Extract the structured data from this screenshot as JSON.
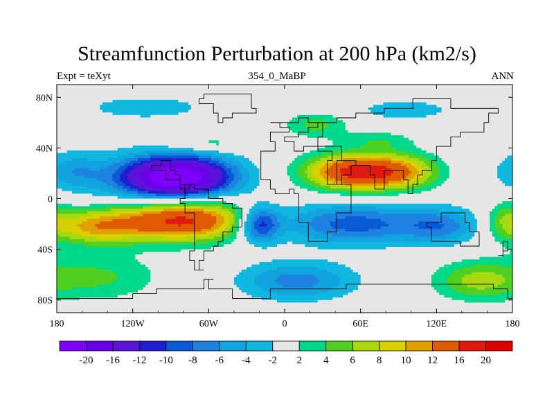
{
  "title": "Streamfunction Perturbation at 200 hPa (km2/s)",
  "subtitle_left": "Expt = teXyt",
  "subtitle_center": "354_0_MaBP",
  "subtitle_right": "ANN",
  "chart_data": {
    "type": "heatmap",
    "projection": "cylindrical-equidistant",
    "xlim": [
      -180,
      180
    ],
    "ylim": [
      -90,
      90
    ],
    "x_ticks": [
      {
        "value": -180,
        "label": "180"
      },
      {
        "value": -120,
        "label": "120W"
      },
      {
        "value": -60,
        "label": "60W"
      },
      {
        "value": 0,
        "label": "0"
      },
      {
        "value": 60,
        "label": "60E"
      },
      {
        "value": 120,
        "label": "120E"
      },
      {
        "value": 180,
        "label": "180"
      }
    ],
    "y_ticks": [
      {
        "value": 80,
        "label": "80N"
      },
      {
        "value": 40,
        "label": "40N"
      },
      {
        "value": 0,
        "label": "0"
      },
      {
        "value": -40,
        "label": "40S"
      },
      {
        "value": -80,
        "label": "80S"
      }
    ],
    "colorbar": {
      "levels": [
        "-20",
        "-16",
        "-12",
        "-10",
        "-8",
        "-6",
        "-4",
        "-2",
        "2",
        "4",
        "6",
        "8",
        "10",
        "12",
        "16",
        "20"
      ],
      "level_values": [
        -20,
        -16,
        -12,
        -10,
        -8,
        -6,
        -4,
        -2,
        2,
        4,
        6,
        8,
        10,
        12,
        16,
        20
      ],
      "colors": [
        "#7f00ff",
        "#6a00e6",
        "#5a14d8",
        "#1f1fd0",
        "#0a5ad6",
        "#1e82e0",
        "#11a4de",
        "#10b8e0",
        "#e6e6e6",
        "#00d88a",
        "#50d020",
        "#a8d810",
        "#d8d000",
        "#e0a000",
        "#e05a00",
        "#e01a10",
        "#e00000"
      ]
    },
    "field_features": [
      {
        "lon": -85,
        "lat": 17,
        "lon_radius": 42,
        "lat_radius": 16,
        "value": -23
      },
      {
        "lon": -167,
        "lat": 22,
        "lon_radius": 22,
        "lat_radius": 14,
        "value": -4
      },
      {
        "lon": -80,
        "lat": -17,
        "lon_radius": 50,
        "lat_radius": 16,
        "value": 17
      },
      {
        "lon": -150,
        "lat": -22,
        "lon_radius": 38,
        "lat_radius": 14,
        "value": 10
      },
      {
        "lon": 55,
        "lat": 21,
        "lon_radius": 38,
        "lat_radius": 14,
        "value": 17
      },
      {
        "lon": 95,
        "lat": 21,
        "lon_radius": 30,
        "lat_radius": 14,
        "value": 8
      },
      {
        "lon": -20,
        "lat": -20,
        "lon_radius": 16,
        "lat_radius": 14,
        "value": -12
      },
      {
        "lon": 55,
        "lat": -20,
        "lon_radius": 58,
        "lat_radius": 16,
        "value": -9
      },
      {
        "lon": 125,
        "lat": -22,
        "lon_radius": 30,
        "lat_radius": 14,
        "value": -6
      },
      {
        "lon": -110,
        "lat": 72,
        "lon_radius": 48,
        "lat_radius": 9,
        "value": -3.6
      },
      {
        "lon": 95,
        "lat": 70,
        "lon_radius": 38,
        "lat_radius": 8,
        "value": -3.6
      },
      {
        "lon": -60,
        "lat": 43,
        "lon_radius": 32,
        "lat_radius": 6,
        "value": 3.4
      },
      {
        "lon": 25,
        "lat": 58,
        "lon_radius": 25,
        "lat_radius": 10,
        "value": 4.6
      },
      {
        "lon": 75,
        "lat": 46,
        "lon_radius": 28,
        "lat_radius": 7,
        "value": 3.4
      },
      {
        "lon": -120,
        "lat": 15,
        "lon_radius": 75,
        "lat_radius": 25,
        "value": -2.5
      },
      {
        "lon": 10,
        "lat": -65,
        "lon_radius": 45,
        "lat_radius": 15,
        "value": -7
      },
      {
        "lon": 150,
        "lat": -65,
        "lon_radius": 32,
        "lat_radius": 15,
        "value": 6
      },
      {
        "lon": -150,
        "lat": -62,
        "lon_radius": 50,
        "lat_radius": 18,
        "value": 4.5
      },
      {
        "lon": 175,
        "lat": -15,
        "lon_radius": 15,
        "lat_radius": 16,
        "value": 4
      }
    ],
    "coastlines": [
      [
        [
          -25,
          73
        ],
        [
          -22,
          72
        ],
        [
          -22,
          68
        ],
        [
          -32,
          66
        ],
        [
          -42,
          62
        ],
        [
          -48,
          61
        ],
        [
          -52,
          66
        ],
        [
          -58,
          74
        ],
        [
          -68,
          77
        ],
        [
          -62,
          82
        ],
        [
          -30,
          82
        ],
        [
          -25,
          77
        ],
        [
          -25,
          73
        ]
      ],
      [
        [
          -90,
          30
        ],
        [
          -97,
          27
        ],
        [
          -105,
          22
        ],
        [
          -95,
          16
        ],
        [
          -88,
          15
        ],
        [
          -83,
          10
        ],
        [
          -78,
          8
        ],
        [
          -75,
          11
        ],
        [
          -80,
          9
        ],
        [
          -83,
          20
        ],
        [
          -88,
          22
        ],
        [
          -90,
          30
        ]
      ],
      [
        [
          -80,
          8
        ],
        [
          -78,
          1
        ],
        [
          -81,
          -5
        ],
        [
          -78,
          -12
        ],
        [
          -71,
          -18
        ],
        [
          -71,
          -30
        ],
        [
          -73,
          -40
        ],
        [
          -74,
          -50
        ],
        [
          -70,
          -55
        ],
        [
          -65,
          -55
        ],
        [
          -66,
          -48
        ],
        [
          -63,
          -40
        ],
        [
          -57,
          -37
        ],
        [
          -52,
          -33
        ],
        [
          -48,
          -28
        ],
        [
          -41,
          -22
        ],
        [
          -35,
          -8
        ],
        [
          -40,
          -3
        ],
        [
          -50,
          0
        ],
        [
          -60,
          8
        ],
        [
          -72,
          12
        ],
        [
          -80,
          8
        ]
      ],
      [
        [
          -10,
          60
        ],
        [
          -5,
          58
        ],
        [
          2,
          52
        ],
        [
          -10,
          45
        ],
        [
          -9,
          37
        ],
        [
          -6,
          36
        ],
        [
          -17,
          21
        ],
        [
          -17,
          14
        ],
        [
          -13,
          8
        ],
        [
          -8,
          4
        ],
        [
          2,
          6
        ],
        [
          9,
          4
        ],
        [
          10,
          -1
        ],
        [
          13,
          -8
        ],
        [
          12,
          -17
        ],
        [
          18,
          -34
        ],
        [
          27,
          -34
        ],
        [
          33,
          -28
        ],
        [
          40,
          -16
        ],
        [
          40,
          -10
        ],
        [
          51,
          11
        ],
        [
          43,
          12
        ],
        [
          35,
          27
        ],
        [
          32,
          31
        ],
        [
          36,
          36
        ],
        [
          27,
          40
        ],
        [
          20,
          40
        ],
        [
          15,
          38
        ],
        [
          6,
          44
        ],
        [
          0,
          50
        ],
        [
          10,
          54
        ],
        [
          20,
          55
        ],
        [
          28,
          60
        ],
        [
          40,
          64
        ],
        [
          58,
          68
        ],
        [
          80,
          72
        ],
        [
          100,
          77
        ],
        [
          130,
          72
        ],
        [
          150,
          70
        ],
        [
          170,
          66
        ],
        [
          160,
          60
        ],
        [
          157,
          52
        ],
        [
          140,
          50
        ],
        [
          130,
          42
        ],
        [
          122,
          40
        ],
        [
          121,
          31
        ],
        [
          117,
          24
        ],
        [
          110,
          20
        ],
        [
          106,
          11
        ],
        [
          100,
          12
        ],
        [
          102,
          3
        ],
        [
          98,
          8
        ],
        [
          98,
          16
        ],
        [
          92,
          22
        ],
        [
          88,
          22
        ],
        [
          78,
          8
        ],
        [
          72,
          20
        ],
        [
          66,
          25
        ],
        [
          57,
          26
        ],
        [
          52,
          17
        ],
        [
          45,
          12
        ],
        [
          43,
          29
        ],
        [
          49,
          30
        ],
        [
          56,
          26
        ],
        [
          55,
          30
        ],
        [
          48,
          30
        ],
        [
          44,
          40
        ],
        [
          42,
          42
        ],
        [
          27,
          42
        ],
        [
          28,
          50
        ],
        [
          30,
          60
        ],
        [
          20,
          64
        ],
        [
          10,
          60
        ],
        [
          -10,
          60
        ]
      ],
      [
        [
          114,
          -22
        ],
        [
          115,
          -34
        ],
        [
          124,
          -34
        ],
        [
          130,
          -32
        ],
        [
          140,
          -38
        ],
        [
          150,
          -37
        ],
        [
          153,
          -28
        ],
        [
          146,
          -18
        ],
        [
          142,
          -11
        ],
        [
          136,
          -12
        ],
        [
          130,
          -12
        ],
        [
          122,
          -17
        ],
        [
          114,
          -22
        ]
      ],
      [
        [
          172,
          -35
        ],
        [
          175,
          -37
        ],
        [
          178,
          -38
        ],
        [
          176,
          -42
        ],
        [
          173,
          -44
        ],
        [
          167,
          -46
        ],
        [
          171,
          -41
        ],
        [
          172,
          -35
        ]
      ],
      [
        [
          -180,
          -78
        ],
        [
          -150,
          -79
        ],
        [
          -120,
          -74
        ],
        [
          -100,
          -73
        ],
        [
          -75,
          -73
        ],
        [
          -62,
          -65
        ],
        [
          -57,
          -63
        ],
        [
          -60,
          -70
        ],
        [
          -40,
          -78
        ],
        [
          -10,
          -72
        ],
        [
          20,
          -70
        ],
        [
          50,
          -67
        ],
        [
          70,
          -68
        ],
        [
          90,
          -66
        ],
        [
          120,
          -66
        ],
        [
          150,
          -68
        ],
        [
          165,
          -72
        ],
        [
          175,
          -78
        ],
        [
          180,
          -78
        ]
      ]
    ]
  }
}
